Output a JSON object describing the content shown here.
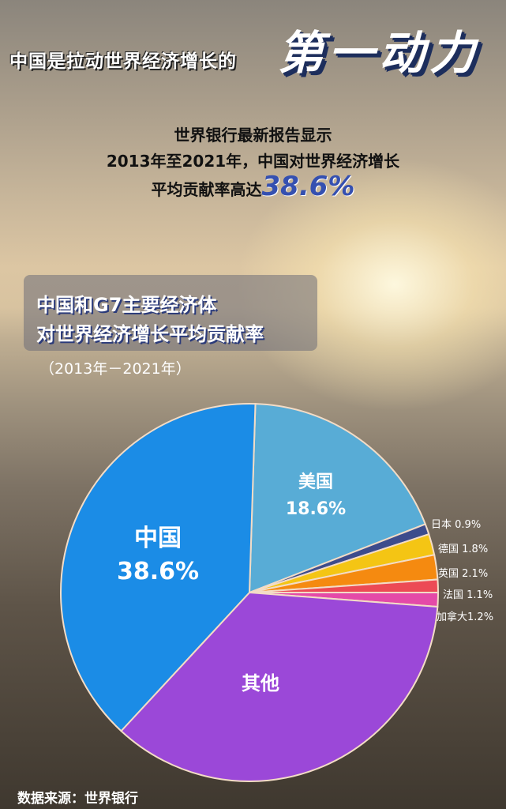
{
  "header": {
    "headline": "中国是拉动世界经济增长的",
    "emphasis": "第一动力"
  },
  "summary": {
    "line1": "世界银行最新报告显示",
    "line2": "2013年至2021年，中国对世界经济增长",
    "line3_prefix": "平均贡献率高达",
    "line3_value": "38.6%"
  },
  "chart_data": {
    "type": "pie",
    "title_line1": "中国和G7主要经济体",
    "title_line2": "对世界经济增长平均贡献率",
    "subtitle": "（2013年－2021年）",
    "unit": "%",
    "slices": [
      {
        "name": "美国",
        "value": 18.6,
        "label": "18.6%",
        "color": "#58acd6"
      },
      {
        "name": "日本",
        "value": 0.9,
        "label": "0.9%",
        "color": "#3d4c8c"
      },
      {
        "name": "德国",
        "value": 1.8,
        "label": "1.8%",
        "color": "#f4c514"
      },
      {
        "name": "英国",
        "value": 2.1,
        "label": "2.1%",
        "color": "#f58a10"
      },
      {
        "name": "法国",
        "value": 1.1,
        "label": "1.1%",
        "color": "#ec4a55"
      },
      {
        "name": "加拿大",
        "value": 1.2,
        "label": "1.2%",
        "color": "#e44aa8"
      },
      {
        "name": "其他",
        "value": 35.7,
        "label": "",
        "color": "#9b48d8"
      },
      {
        "name": "中国",
        "value": 38.6,
        "label": "38.6%",
        "color": "#1b8ce6"
      }
    ]
  },
  "source": "数据来源：世界银行"
}
